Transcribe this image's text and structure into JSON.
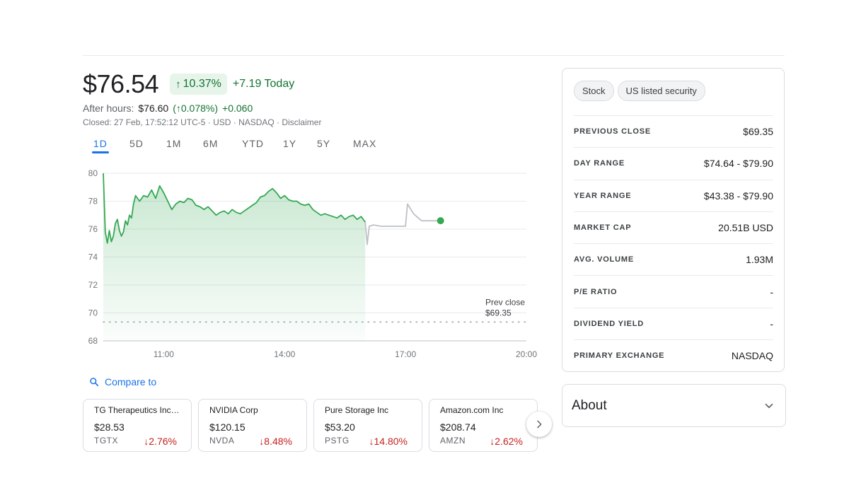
{
  "quote": {
    "price": "$76.54",
    "change_arrow": "↑",
    "change_percent": "10.37%",
    "change_today": "+7.19 Today",
    "after_hours_label": "After hours:",
    "after_hours_price": "$76.60",
    "after_hours_percent": "(↑0.078%)",
    "after_hours_change": "+0.060",
    "closed_line": "Closed: 27 Feb, 17:52:12 UTC-5 · USD · NASDAQ · Disclaimer"
  },
  "range_tabs": [
    {
      "label": "1D",
      "active": true
    },
    {
      "label": "5D",
      "active": false
    },
    {
      "label": "1M",
      "active": false
    },
    {
      "label": "6M",
      "active": false
    },
    {
      "label": "YTD",
      "active": false
    },
    {
      "label": "1Y",
      "active": false
    },
    {
      "label": "5Y",
      "active": false
    },
    {
      "label": "MAX",
      "active": false
    }
  ],
  "chart_data": {
    "type": "area",
    "y_ticks": [
      68,
      70,
      72,
      74,
      76,
      78,
      80
    ],
    "x_ticks": [
      "11:00",
      "14:00",
      "17:00",
      "20:00"
    ],
    "ylim": [
      68,
      80
    ],
    "xlim_hours": [
      9.5,
      20
    ],
    "prev_close": {
      "value": 69.35,
      "label": "Prev close",
      "value_label": "$69.35"
    },
    "colors": {
      "line": "#34a853",
      "fill": "#34a853",
      "after_hours": "#bdc1c6",
      "dot": "#34a853",
      "grid": "#e8eaed"
    },
    "series": [
      {
        "session": "regular",
        "x": [
          9.5,
          9.55,
          9.6,
          9.65,
          9.7,
          9.75,
          9.8,
          9.85,
          9.9,
          9.95,
          10.0,
          10.05,
          10.1,
          10.15,
          10.2,
          10.25,
          10.3,
          10.4,
          10.5,
          10.6,
          10.7,
          10.8,
          10.9,
          11.0,
          11.1,
          11.2,
          11.3,
          11.4,
          11.5,
          11.6,
          11.7,
          11.8,
          11.9,
          12.0,
          12.1,
          12.2,
          12.3,
          12.4,
          12.5,
          12.6,
          12.7,
          12.8,
          12.9,
          13.0,
          13.1,
          13.2,
          13.3,
          13.4,
          13.5,
          13.6,
          13.7,
          13.8,
          13.9,
          14.0,
          14.1,
          14.2,
          14.3,
          14.4,
          14.5,
          14.6,
          14.7,
          14.8,
          14.9,
          15.0,
          15.1,
          15.2,
          15.3,
          15.4,
          15.5,
          15.6,
          15.7,
          15.8,
          15.9,
          16.0
        ],
        "y": [
          80.0,
          75.8,
          75.0,
          75.9,
          75.1,
          75.5,
          76.4,
          76.7,
          75.9,
          75.5,
          75.8,
          76.6,
          76.3,
          77.0,
          76.8,
          77.8,
          78.4,
          78.0,
          78.4,
          78.3,
          78.8,
          78.2,
          79.1,
          78.6,
          78.0,
          77.4,
          77.8,
          78.0,
          77.9,
          78.2,
          78.1,
          77.7,
          77.6,
          77.4,
          77.6,
          77.3,
          77.0,
          77.2,
          77.3,
          77.1,
          77.4,
          77.2,
          77.1,
          77.3,
          77.5,
          77.7,
          77.9,
          78.3,
          78.4,
          78.7,
          78.9,
          78.6,
          78.2,
          78.4,
          78.1,
          78.0,
          78.0,
          77.8,
          77.7,
          77.8,
          77.4,
          77.2,
          77.0,
          77.1,
          77.0,
          76.9,
          76.8,
          77.0,
          76.7,
          76.9,
          77.0,
          76.7,
          76.9,
          76.5
        ]
      },
      {
        "session": "after_hours",
        "x": [
          16.0,
          16.05,
          16.1,
          16.2,
          16.4,
          16.8,
          17.0,
          17.05,
          17.2,
          17.4,
          17.6,
          17.87
        ],
        "y": [
          76.5,
          74.9,
          76.2,
          76.3,
          76.2,
          76.2,
          76.2,
          77.8,
          77.1,
          76.6,
          76.6,
          76.6
        ]
      }
    ]
  },
  "compare": {
    "label": "Compare to"
  },
  "compare_cards": [
    {
      "name": "TG Therapeutics Inc co...",
      "price": "$28.53",
      "ticker": "TGTX",
      "change": "↓2.76%"
    },
    {
      "name": "NVIDIA Corp",
      "price": "$120.15",
      "ticker": "NVDA",
      "change": "↓8.48%"
    },
    {
      "name": "Pure Storage Inc",
      "price": "$53.20",
      "ticker": "PSTG",
      "change": "↓14.80%"
    },
    {
      "name": "Amazon.com Inc",
      "price": "$208.74",
      "ticker": "AMZN",
      "change": "↓2.62%"
    }
  ],
  "chips": [
    "Stock",
    "US listed security"
  ],
  "stats": [
    {
      "label": "PREVIOUS CLOSE",
      "value": "$69.35"
    },
    {
      "label": "DAY RANGE",
      "value": "$74.64 - $79.90"
    },
    {
      "label": "YEAR RANGE",
      "value": "$43.38 - $79.90"
    },
    {
      "label": "MARKET CAP",
      "value": "20.51B USD"
    },
    {
      "label": "AVG. VOLUME",
      "value": "1.93M"
    },
    {
      "label": "P/E RATIO",
      "value": "-"
    },
    {
      "label": "DIVIDEND YIELD",
      "value": "-"
    },
    {
      "label": "PRIMARY EXCHANGE",
      "value": "NASDAQ"
    }
  ],
  "about": {
    "title": "About",
    "icon": "chevron-down-icon"
  },
  "icons": {
    "search": "search-icon",
    "next": "chevron-right-icon"
  }
}
